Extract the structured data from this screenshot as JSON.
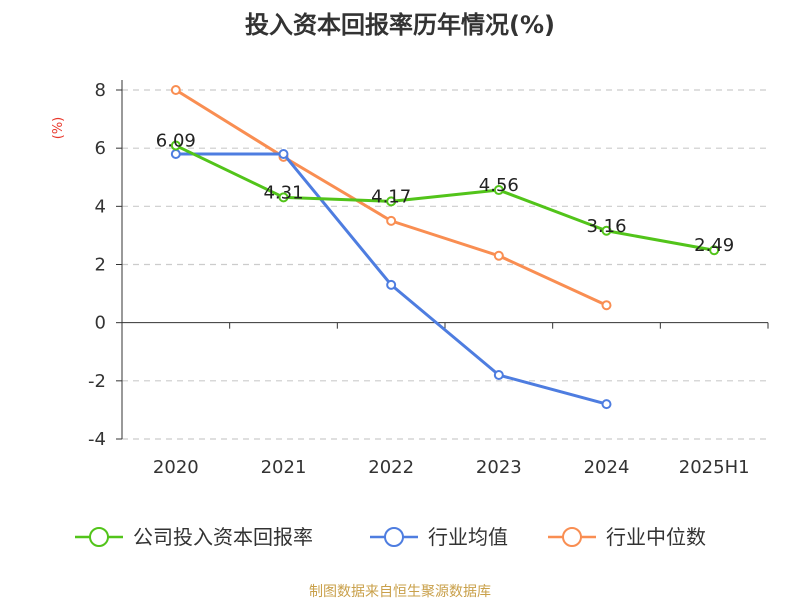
{
  "chart_data": {
    "type": "line",
    "title": "投入资本回报率历年情况(%)",
    "ylabel": "(%)",
    "categories": [
      "2020",
      "2021",
      "2022",
      "2023",
      "2024",
      "2025H1"
    ],
    "ylim": [
      -4,
      8
    ],
    "yticks": [
      "8",
      "6",
      "4",
      "2",
      "0",
      "-2",
      "-4"
    ],
    "grid": true,
    "legend_position": "bottom",
    "series": [
      {
        "name": "公司投入资本回报率",
        "color": "#52c41a",
        "values": [
          6.09,
          4.31,
          4.17,
          4.56,
          3.16,
          2.49
        ],
        "labels": [
          "6.09",
          "4.31",
          "4.17",
          "4.56",
          "3.16",
          "2.49"
        ]
      },
      {
        "name": "行业均值",
        "color": "#4e7de0",
        "values": [
          5.8,
          5.8,
          1.3,
          -1.8,
          -2.8,
          null
        ]
      },
      {
        "name": "行业中位数",
        "color": "#f98e52",
        "values": [
          8.0,
          5.7,
          3.5,
          2.3,
          0.6,
          null
        ]
      }
    ]
  },
  "source": "制图数据来自恒生聚源数据库"
}
